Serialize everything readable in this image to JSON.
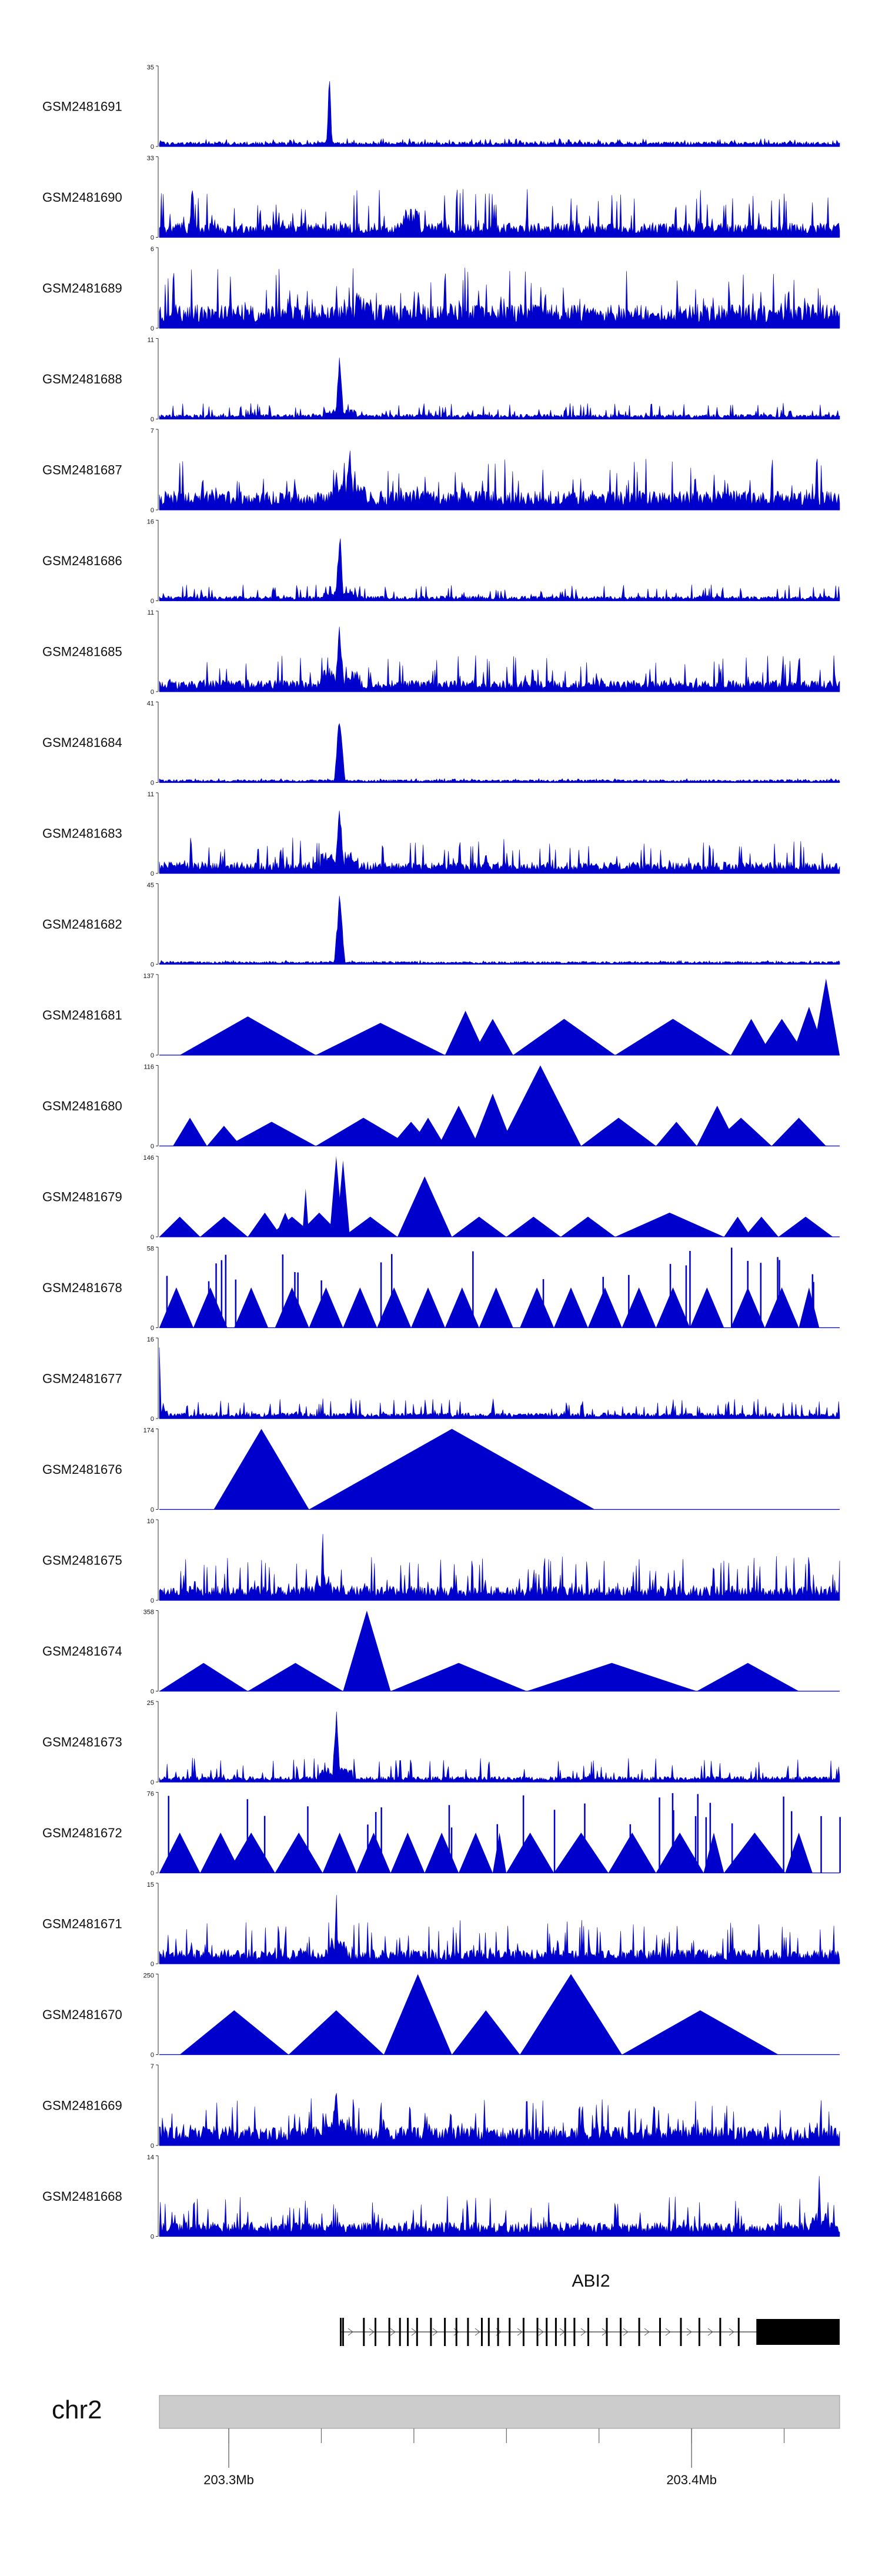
{
  "chart_data": {
    "type": "area",
    "title": "",
    "chromosome": "chr2",
    "x_unit": "Mb",
    "xlim": [
      203.285,
      203.432
    ],
    "axis_ticks": [
      203.3,
      203.32,
      203.34,
      203.36,
      203.38,
      203.4,
      203.42
    ],
    "axis_labels": [
      {
        "value": 203.3,
        "label": "203.3Mb"
      },
      {
        "value": 203.4,
        "label": "203.4Mb"
      }
    ],
    "gene": {
      "name": "ABI2",
      "start": 203.324,
      "end": 203.432,
      "cds_end": 203.414,
      "strand": "+",
      "exons": [
        203.324,
        203.3245,
        203.329,
        203.3315,
        203.3345,
        203.3368,
        203.3385,
        203.3405,
        203.3435,
        203.3465,
        203.349,
        203.3515,
        203.3545,
        203.356,
        203.358,
        203.3605,
        203.3635,
        203.3665,
        203.3685,
        203.3705,
        203.3725,
        203.3745,
        203.3775,
        203.3815,
        203.3845,
        203.3885,
        203.393,
        203.3975,
        203.4015,
        203.406,
        203.41
      ]
    },
    "series": [
      {
        "name": "GSM2481691",
        "ymax": 35,
        "style": "dense",
        "peak": 0.25,
        "base": 0.05,
        "spike": 0.1,
        "peak_height": 1.0,
        "peak_width": 0.004
      },
      {
        "name": "GSM2481690",
        "ymax": 33,
        "style": "dense",
        "peak": 0.37,
        "base": 0.15,
        "spike": 0.6,
        "peak_height": 0.55,
        "peak_width": 0.003
      },
      {
        "name": "GSM2481689",
        "ymax": 6,
        "style": "dense",
        "peak": 0.3,
        "base": 0.25,
        "spike": 0.75,
        "peak_height": 0.5,
        "peak_width": 0.003
      },
      {
        "name": "GSM2481688",
        "ymax": 11,
        "style": "dense",
        "peak": 0.265,
        "base": 0.05,
        "spike": 0.2,
        "peak_height": 0.95,
        "peak_width": 0.006
      },
      {
        "name": "GSM2481687",
        "ymax": 7,
        "style": "dense",
        "peak": 0.28,
        "base": 0.2,
        "spike": 0.65,
        "peak_height": 0.85,
        "peak_width": 0.006
      },
      {
        "name": "GSM2481686",
        "ymax": 16,
        "style": "dense",
        "peak": 0.265,
        "base": 0.05,
        "spike": 0.2,
        "peak_height": 0.95,
        "peak_width": 0.006
      },
      {
        "name": "GSM2481685",
        "ymax": 11,
        "style": "dense",
        "peak": 0.265,
        "base": 0.12,
        "spike": 0.45,
        "peak_height": 0.9,
        "peak_width": 0.007
      },
      {
        "name": "GSM2481684",
        "ymax": 41,
        "style": "dense",
        "peak": 0.265,
        "base": 0.03,
        "spike": 0.05,
        "peak_height": 0.95,
        "peak_width": 0.008
      },
      {
        "name": "GSM2481683",
        "ymax": 11,
        "style": "dense",
        "peak": 0.265,
        "base": 0.12,
        "spike": 0.45,
        "peak_height": 0.9,
        "peak_width": 0.007
      },
      {
        "name": "GSM2481682",
        "ymax": 45,
        "style": "dense",
        "peak": 0.265,
        "base": 0.03,
        "spike": 0.05,
        "peak_height": 0.95,
        "peak_width": 0.008
      },
      {
        "name": "GSM2481681",
        "ymax": 137,
        "style": "tri",
        "triangles": [
          [
            0.03,
            0.23,
            0.48
          ],
          [
            0.23,
            0.42,
            0.4
          ],
          [
            0.42,
            0.48,
            0.55
          ],
          [
            0.46,
            0.52,
            0.45
          ],
          [
            0.52,
            0.67,
            0.45
          ],
          [
            0.67,
            0.84,
            0.45
          ],
          [
            0.84,
            0.9,
            0.45
          ],
          [
            0.88,
            0.95,
            0.45
          ],
          [
            0.96,
            1.0,
            0.95
          ],
          [
            0.93,
            0.98,
            0.6
          ]
        ]
      },
      {
        "name": "GSM2481680",
        "ymax": 116,
        "style": "tri",
        "triangles": [
          [
            0.02,
            0.07,
            0.35
          ],
          [
            0.07,
            0.12,
            0.25
          ],
          [
            0.1,
            0.23,
            0.3
          ],
          [
            0.23,
            0.37,
            0.35
          ],
          [
            0.34,
            0.4,
            0.3
          ],
          [
            0.37,
            0.42,
            0.35
          ],
          [
            0.41,
            0.47,
            0.5
          ],
          [
            0.46,
            0.52,
            0.65
          ],
          [
            0.5,
            0.62,
            1.0
          ],
          [
            0.62,
            0.73,
            0.35
          ],
          [
            0.73,
            0.79,
            0.3
          ],
          [
            0.79,
            0.85,
            0.5
          ],
          [
            0.81,
            0.9,
            0.35
          ],
          [
            0.9,
            0.98,
            0.35
          ],
          [
            0.85,
            0.87,
            0.3
          ]
        ]
      },
      {
        "name": "GSM2481679",
        "ymax": 146,
        "style": "tri",
        "triangles": [
          [
            0.0,
            0.06,
            0.25
          ],
          [
            0.06,
            0.13,
            0.25
          ],
          [
            0.13,
            0.18,
            0.3
          ],
          [
            0.16,
            0.23,
            0.25
          ],
          [
            0.2,
            0.27,
            0.3
          ],
          [
            0.27,
            0.35,
            0.25
          ],
          [
            0.35,
            0.43,
            0.75
          ],
          [
            0.43,
            0.51,
            0.25
          ],
          [
            0.51,
            0.59,
            0.25
          ],
          [
            0.59,
            0.67,
            0.25
          ],
          [
            0.67,
            0.83,
            0.3
          ],
          [
            0.83,
            0.87,
            0.25
          ],
          [
            0.86,
            0.91,
            0.25
          ],
          [
            0.91,
            0.99,
            0.25
          ],
          [
            0.17,
            0.2,
            0.3
          ],
          [
            0.25,
            0.27,
            1.0
          ],
          [
            0.26,
            0.28,
            0.95
          ],
          [
            0.21,
            0.22,
            0.6
          ]
        ]
      },
      {
        "name": "GSM2481678",
        "ymax": 58,
        "style": "tri",
        "spikes": true,
        "triangles": [
          [
            0.0,
            0.05,
            0.5
          ],
          [
            0.05,
            0.1,
            0.5
          ],
          [
            0.11,
            0.16,
            0.5
          ],
          [
            0.17,
            0.22,
            0.5
          ],
          [
            0.22,
            0.27,
            0.5
          ],
          [
            0.27,
            0.32,
            0.5
          ],
          [
            0.32,
            0.37,
            0.5
          ],
          [
            0.37,
            0.42,
            0.5
          ],
          [
            0.42,
            0.47,
            0.5
          ],
          [
            0.47,
            0.52,
            0.5
          ],
          [
            0.53,
            0.58,
            0.5
          ],
          [
            0.58,
            0.63,
            0.5
          ],
          [
            0.63,
            0.68,
            0.5
          ],
          [
            0.68,
            0.73,
            0.5
          ],
          [
            0.73,
            0.78,
            0.5
          ],
          [
            0.78,
            0.83,
            0.5
          ],
          [
            0.84,
            0.89,
            0.5
          ],
          [
            0.89,
            0.94,
            0.5
          ],
          [
            0.94,
            0.97,
            0.5
          ]
        ]
      },
      {
        "name": "GSM2481677",
        "ymax": 16,
        "style": "dense",
        "peak": 0.0,
        "base": 0.06,
        "spike": 0.25,
        "peak_height": 0.9,
        "peak_width": 0.003
      },
      {
        "name": "GSM2481676",
        "ymax": 174,
        "style": "tri",
        "triangles": [
          [
            0.08,
            0.22,
            1.0
          ],
          [
            0.22,
            0.64,
            1.0
          ]
        ]
      },
      {
        "name": "GSM2481675",
        "ymax": 10,
        "style": "dense",
        "peak": 0.24,
        "base": 0.15,
        "spike": 0.55,
        "peak_height": 0.95,
        "peak_width": 0.003
      },
      {
        "name": "GSM2481674",
        "ymax": 358,
        "style": "tri",
        "triangles": [
          [
            0.0,
            0.13,
            0.35
          ],
          [
            0.13,
            0.27,
            0.35
          ],
          [
            0.27,
            0.34,
            1.0
          ],
          [
            0.34,
            0.54,
            0.35
          ],
          [
            0.54,
            0.79,
            0.35
          ],
          [
            0.79,
            0.94,
            0.35
          ]
        ]
      },
      {
        "name": "GSM2481673",
        "ymax": 25,
        "style": "dense",
        "peak": 0.26,
        "base": 0.06,
        "spike": 0.3,
        "peak_height": 1.0,
        "peak_width": 0.006
      },
      {
        "name": "GSM2481672",
        "ymax": 76,
        "style": "tri",
        "spikes": true,
        "triangles": [
          [
            0.0,
            0.06,
            0.5
          ],
          [
            0.06,
            0.12,
            0.5
          ],
          [
            0.1,
            0.17,
            0.5
          ],
          [
            0.17,
            0.24,
            0.5
          ],
          [
            0.24,
            0.29,
            0.5
          ],
          [
            0.29,
            0.34,
            0.5
          ],
          [
            0.34,
            0.39,
            0.5
          ],
          [
            0.39,
            0.44,
            0.5
          ],
          [
            0.44,
            0.49,
            0.5
          ],
          [
            0.49,
            0.51,
            0.5
          ],
          [
            0.51,
            0.58,
            0.5
          ],
          [
            0.58,
            0.66,
            0.5
          ],
          [
            0.66,
            0.73,
            0.5
          ],
          [
            0.73,
            0.8,
            0.5
          ],
          [
            0.8,
            0.83,
            0.5
          ],
          [
            0.83,
            0.92,
            0.5
          ],
          [
            0.92,
            0.96,
            0.5
          ]
        ]
      },
      {
        "name": "GSM2481671",
        "ymax": 15,
        "style": "dense",
        "peak": 0.26,
        "base": 0.15,
        "spike": 0.55,
        "peak_height": 1.0,
        "peak_width": 0.003
      },
      {
        "name": "GSM2481670",
        "ymax": 250,
        "style": "tri",
        "triangles": [
          [
            0.03,
            0.19,
            0.55
          ],
          [
            0.19,
            0.33,
            0.55
          ],
          [
            0.33,
            0.43,
            1.0
          ],
          [
            0.43,
            0.53,
            0.55
          ],
          [
            0.53,
            0.68,
            1.0
          ],
          [
            0.68,
            0.91,
            0.55
          ]
        ]
      },
      {
        "name": "GSM2481669",
        "ymax": 7,
        "style": "dense",
        "peak": 0.26,
        "base": 0.2,
        "spike": 0.6,
        "peak_height": 0.9,
        "peak_width": 0.005
      },
      {
        "name": "GSM2481668",
        "ymax": 14,
        "style": "dense",
        "peak": 0.97,
        "base": 0.15,
        "spike": 0.5,
        "peak_height": 0.9,
        "peak_width": 0.003
      }
    ]
  }
}
